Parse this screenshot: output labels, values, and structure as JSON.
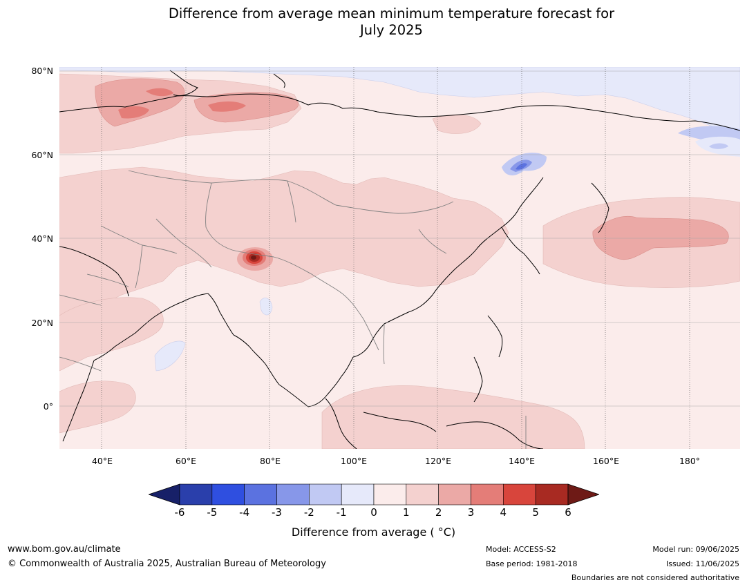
{
  "title": {
    "line1": "Difference from average mean minimum temperature forecast for",
    "line2": "July 2025"
  },
  "map": {
    "lat_labels": [
      "80°N",
      "60°N",
      "40°N",
      "20°N",
      "0°"
    ],
    "lon_labels": [
      "40°E",
      "60°E",
      "80°E",
      "100°E",
      "120°E",
      "140°E",
      "160°E",
      "180°"
    ],
    "lat_range": [
      -10,
      80
    ],
    "lon_range": [
      30,
      192
    ],
    "anomaly_areas": [
      {
        "name": "northern-arctic-coast",
        "value": -1
      },
      {
        "name": "kamchatka-east",
        "value": -1
      },
      {
        "name": "sea-of-okhotsk",
        "value": -3
      },
      {
        "name": "arabian-sea",
        "value": -1
      },
      {
        "name": "bay-of-bengal",
        "value": -1
      },
      {
        "name": "northwest-russia",
        "value": 3
      },
      {
        "name": "kara-sea-coast",
        "value": 3
      },
      {
        "name": "north-pacific",
        "value": 3
      },
      {
        "name": "himalaya-northwest",
        "value": 6
      },
      {
        "name": "central-asia-tibet-china",
        "value": 2
      },
      {
        "name": "western-russia",
        "value": 2
      },
      {
        "name": "north-africa-arabia",
        "value": 2
      },
      {
        "name": "maritime-continent",
        "value": 2
      }
    ]
  },
  "colorbar": {
    "colors": [
      "#172068",
      "#2a3fab",
      "#2f4fe0",
      "#5b72e0",
      "#8797e9",
      "#c1c9f3",
      "#e6e9fa",
      "#fbeceb",
      "#f4d1cf",
      "#eba9a6",
      "#e47d78",
      "#d8453c",
      "#a82a22",
      "#6e1a16"
    ],
    "ticks": [
      "-6",
      "-5",
      "-4",
      "-3",
      "-2",
      "-1",
      "0",
      "1",
      "2",
      "3",
      "4",
      "5",
      "6"
    ],
    "label": "Difference from average ( °C)"
  },
  "footer": {
    "website": "www.bom.gov.au/climate",
    "copyright": "© Commonwealth of Australia 2025, Australian Bureau of Meteorology",
    "model": "Model: ACCESS-S2",
    "base_period": "Base period: 1981-2018",
    "model_run": "Model run: 09/06/2025",
    "issued": "Issued: 11/06/2025",
    "boundaries": "Boundaries are not considered authoritative"
  }
}
